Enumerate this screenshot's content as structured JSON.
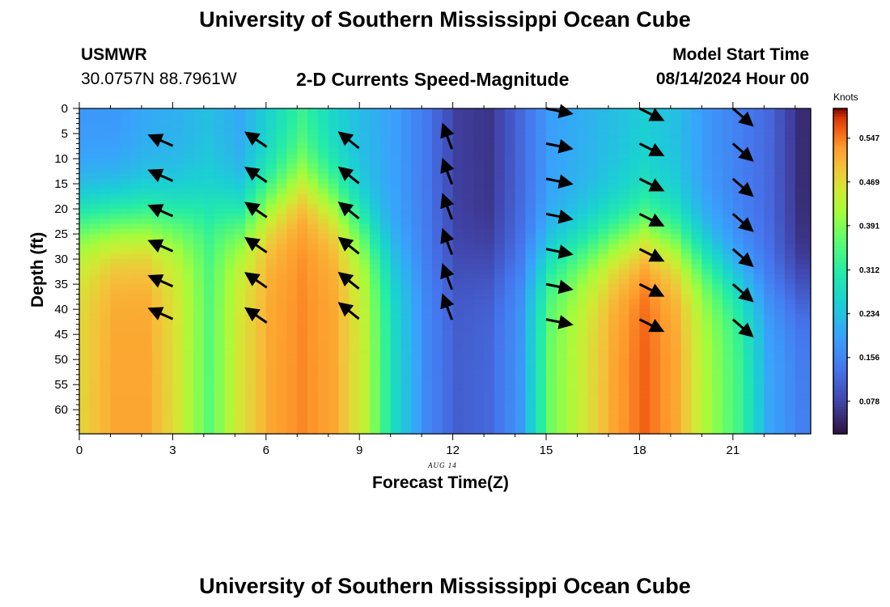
{
  "header": {
    "title": "University of Southern Mississippi Ocean Cube",
    "station_id": "USMWR",
    "station_coords": "30.0757N  88.7961W",
    "plot_title": "2-D Currents Speed-Magnitude",
    "start_label": "Model Start Time",
    "start_value": "08/14/2024 Hour 00"
  },
  "footer": {
    "title": "University of Southern Mississippi Ocean Cube"
  },
  "chart_data": {
    "type": "heatmap",
    "title": "2-D Currents Speed-Magnitude",
    "xlabel": "Forecast Time(Z)",
    "ylabel": "Depth (ft)",
    "date_label": "AUG 14",
    "colorbar_label": "Knots",
    "x_ticks": [
      0,
      3,
      6,
      9,
      12,
      15,
      18,
      21
    ],
    "y_ticks": [
      0,
      5,
      10,
      15,
      20,
      25,
      30,
      35,
      40,
      45,
      50,
      55,
      60
    ],
    "xlim": [
      0,
      23
    ],
    "ylim": [
      0,
      64
    ],
    "colorbar_ticks": [
      0.078,
      0.156,
      0.234,
      0.312,
      0.391,
      0.469,
      0.547
    ],
    "colorbar_range": [
      0.02,
      0.6
    ],
    "time_columns": [
      {
        "t": 0,
        "surface": 0.18,
        "bottom": 0.48,
        "mid": 22
      },
      {
        "t": 1,
        "surface": 0.18,
        "bottom": 0.52,
        "mid": 22
      },
      {
        "t": 2,
        "surface": 0.2,
        "bottom": 0.52,
        "mid": 22
      },
      {
        "t": 3,
        "surface": 0.21,
        "bottom": 0.46,
        "mid": 22
      },
      {
        "t": 4,
        "surface": 0.23,
        "bottom": 0.36,
        "mid": 20
      },
      {
        "t": 5,
        "surface": 0.2,
        "bottom": 0.46,
        "mid": 22
      },
      {
        "t": 6,
        "surface": 0.26,
        "bottom": 0.52,
        "mid": 18
      },
      {
        "t": 7,
        "surface": 0.32,
        "bottom": 0.54,
        "mid": 14
      },
      {
        "t": 8,
        "surface": 0.26,
        "bottom": 0.52,
        "mid": 18
      },
      {
        "t": 9,
        "surface": 0.22,
        "bottom": 0.44,
        "mid": 24
      },
      {
        "t": 10,
        "surface": 0.19,
        "bottom": 0.27,
        "mid": 30
      },
      {
        "t": 11,
        "surface": 0.14,
        "bottom": 0.16,
        "mid": 32
      },
      {
        "t": 12,
        "surface": 0.07,
        "bottom": 0.11,
        "mid": 32
      },
      {
        "t": 13,
        "surface": 0.06,
        "bottom": 0.12,
        "mid": 32
      },
      {
        "t": 14,
        "surface": 0.12,
        "bottom": 0.18,
        "mid": 32
      },
      {
        "t": 15,
        "surface": 0.19,
        "bottom": 0.38,
        "mid": 30
      },
      {
        "t": 16,
        "surface": 0.21,
        "bottom": 0.45,
        "mid": 28
      },
      {
        "t": 17,
        "surface": 0.23,
        "bottom": 0.52,
        "mid": 26
      },
      {
        "t": 18,
        "surface": 0.25,
        "bottom": 0.56,
        "mid": 24
      },
      {
        "t": 19,
        "surface": 0.23,
        "bottom": 0.52,
        "mid": 26
      },
      {
        "t": 20,
        "surface": 0.18,
        "bottom": 0.42,
        "mid": 30
      },
      {
        "t": 21,
        "surface": 0.15,
        "bottom": 0.34,
        "mid": 34
      },
      {
        "t": 22,
        "surface": 0.12,
        "bottom": 0.2,
        "mid": 36
      },
      {
        "t": 23,
        "surface": 0.05,
        "bottom": 0.15,
        "mid": 36
      }
    ],
    "vectors": [
      {
        "t": 2.3,
        "depths": [
          5.5,
          12.5,
          19.5,
          26.5,
          33.5,
          40
        ],
        "u": -0.9,
        "v": 0.4
      },
      {
        "t": 5.4,
        "depths": [
          5,
          12,
          19,
          26,
          33,
          40
        ],
        "u": -0.8,
        "v": 0.55
      },
      {
        "t": 8.4,
        "depths": [
          5,
          12,
          19,
          26,
          33,
          39
        ],
        "u": -0.75,
        "v": 0.6
      },
      {
        "t": 11.7,
        "depths": [
          3.5,
          10.5,
          17.5,
          24.5,
          31.5,
          37.5
        ],
        "u": -0.35,
        "v": 0.95
      },
      {
        "t": 15.0,
        "depths": [
          0,
          7,
          14,
          21,
          28,
          35,
          42
        ],
        "u": 0.98,
        "v": -0.2
      },
      {
        "t": 18.0,
        "depths": [
          0,
          7,
          14,
          21,
          28,
          35,
          42
        ],
        "u": 0.9,
        "v": -0.45
      },
      {
        "t": 21.0,
        "depths": [
          0,
          7,
          14,
          21,
          28,
          35,
          42
        ],
        "u": 0.75,
        "v": -0.65
      }
    ]
  }
}
